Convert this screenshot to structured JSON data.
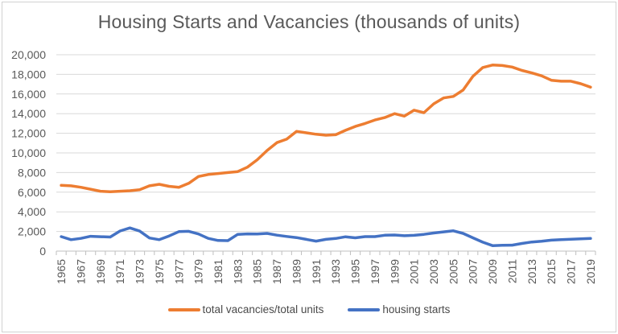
{
  "frame": {
    "border_color": "#d2d2d2",
    "background": "#ffffff"
  },
  "chart_data": {
    "type": "line",
    "title": "Housing Starts and Vacancies (thousands of units)",
    "x": [
      1965,
      1966,
      1967,
      1968,
      1969,
      1970,
      1971,
      1972,
      1973,
      1974,
      1975,
      1976,
      1977,
      1978,
      1979,
      1980,
      1981,
      1982,
      1983,
      1984,
      1985,
      1986,
      1987,
      1988,
      1989,
      1990,
      1991,
      1992,
      1993,
      1994,
      1995,
      1996,
      1997,
      1998,
      1999,
      2000,
      2001,
      2002,
      2003,
      2004,
      2005,
      2006,
      2007,
      2008,
      2009,
      2010,
      2011,
      2012,
      2013,
      2014,
      2015,
      2016,
      2017,
      2018,
      2019
    ],
    "series": [
      {
        "name": "total vacancies/total units",
        "color": "#ED7D31",
        "values": [
          6700,
          6650,
          6500,
          6300,
          6100,
          6050,
          6100,
          6150,
          6250,
          6650,
          6800,
          6600,
          6500,
          6900,
          7600,
          7800,
          7900,
          8000,
          8100,
          8550,
          9300,
          10250,
          11050,
          11400,
          12200,
          12050,
          11900,
          11800,
          11850,
          12300,
          12700,
          13000,
          13350,
          13600,
          14000,
          13750,
          14350,
          14100,
          15000,
          15600,
          15750,
          16400,
          17800,
          18700,
          18950,
          18900,
          18750,
          18400,
          18150,
          17850,
          17400,
          17300,
          17300,
          17050,
          16700
        ]
      },
      {
        "name": "housing starts",
        "color": "#4472C4",
        "values": [
          1473,
          1165,
          1292,
          1508,
          1467,
          1434,
          2052,
          2357,
          2045,
          1338,
          1160,
          1538,
          1987,
          2020,
          1745,
          1292,
          1084,
          1062,
          1703,
          1750,
          1742,
          1805,
          1620,
          1488,
          1376,
          1193,
          1014,
          1200,
          1288,
          1457,
          1354,
          1477,
          1474,
          1617,
          1641,
          1569,
          1603,
          1705,
          1848,
          1956,
          2068,
          1801,
          1355,
          906,
          554,
          587,
          609,
          781,
          925,
          1003,
          1112,
          1174,
          1203,
          1250,
          1290
        ]
      }
    ],
    "ylim": [
      0,
      20000
    ],
    "y_tick_step": 2000,
    "y_tick_labels": [
      "0",
      "2,000",
      "4,000",
      "6,000",
      "8,000",
      "10,000",
      "12,000",
      "14,000",
      "16,000",
      "18,000",
      "20,000"
    ],
    "x_tick_labels": [
      "1965",
      "1967",
      "1969",
      "1971",
      "1973",
      "1975",
      "1977",
      "1979",
      "1981",
      "1983",
      "1985",
      "1987",
      "1989",
      "1991",
      "1993",
      "1995",
      "1997",
      "1999",
      "2001",
      "2003",
      "2005",
      "2007",
      "2009",
      "2011",
      "2013",
      "2015",
      "2017",
      "2019"
    ],
    "grid": "horizontal",
    "legend_position": "bottom",
    "gridline_color": "#D9D9D9",
    "axis_color": "#BFBFBF",
    "label_color": "#595959"
  }
}
